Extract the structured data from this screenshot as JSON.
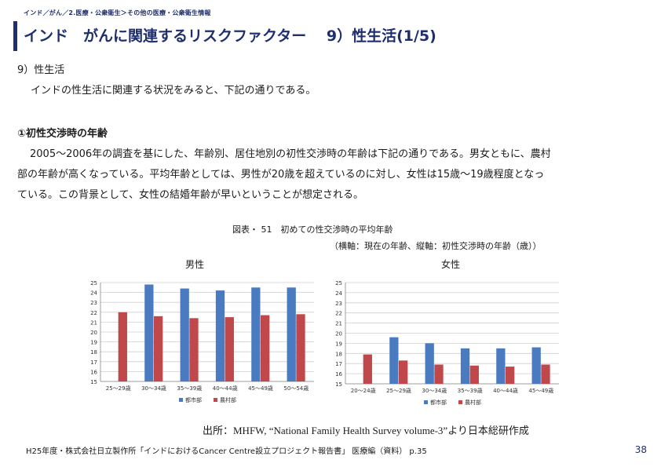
{
  "breadcrumb": "インド／がん／2.医療・公衆衛生＞その他の医療・公衆衛生情報",
  "title": "インド　がんに関連するリスクファクター　 9）性生活(1/5)",
  "section_heading": "9）性生活",
  "intro": "インドの性生活に関連する状況をみると、下記の通りである。",
  "subsection_heading": "①初性交渉時の年齢",
  "paragraph": [
    "2005～2006年の調査を基にした、年齢別、居住地別の初性交渉時の年齢は下記の通りである。男女ともに、農村",
    "部の年齢が高くなっている。平均年齢としては、男性が20歳を超えているのに対し、女性は15歳～19歳程度となっ",
    "ている。この背景として、女性の結婚年齢が早いということが想定される。"
  ],
  "figure_caption": "図表・ 51　初めての性交渉時の平均年齢",
  "figure_subcaption": "（横軸：現在の年齢、縦軸：初性交渉時の年齢（歳））",
  "colors": {
    "urban": "#4a7bc0",
    "rural": "#c0474a",
    "accent": "#1f2f6e"
  },
  "chart_data": [
    {
      "type": "bar",
      "title": "男性",
      "categories": [
        "25～29歳",
        "30～34歳",
        "35～39歳",
        "40～44歳",
        "45～49歳",
        "50～54歳"
      ],
      "series": [
        {
          "name": "都市部",
          "values": [
            15,
            24.8,
            24.4,
            24.2,
            24.5,
            24.5
          ]
        },
        {
          "name": "農村部",
          "values": [
            22,
            21.6,
            21.4,
            21.5,
            21.7,
            21.8
          ]
        }
      ],
      "yticks": [
        "15",
        "16",
        "17",
        "18",
        "19",
        "20",
        "21",
        "22",
        "23",
        "24",
        "25"
      ],
      "ylim": [
        15,
        25
      ],
      "legend": "bottom"
    },
    {
      "type": "bar",
      "title": "女性",
      "categories": [
        "20～24歳",
        "25～29歳",
        "30～34歳",
        "35～39歳",
        "40～44歳",
        "45～49歳"
      ],
      "series": [
        {
          "name": "都市部",
          "values": [
            15,
            19.6,
            19,
            18.5,
            18.5,
            18.6
          ]
        },
        {
          "name": "農村部",
          "values": [
            17.9,
            17.3,
            16.9,
            16.8,
            16.7,
            16.9
          ]
        }
      ],
      "yticks": [
        "15",
        "16",
        "17",
        "18",
        "19",
        "20",
        "21",
        "22",
        "23",
        "24",
        "25"
      ],
      "ylim": [
        15,
        25
      ],
      "legend": "bottom"
    }
  ],
  "source": "出所：MHFW, “National Family Health Survey volume-3”より日本総研作成",
  "footer": "H25年度・株式会社日立製作所「インドにおけるCancer Centre設立プロジェクト報告書」 医療編（資料） p.35",
  "page_number": "38"
}
